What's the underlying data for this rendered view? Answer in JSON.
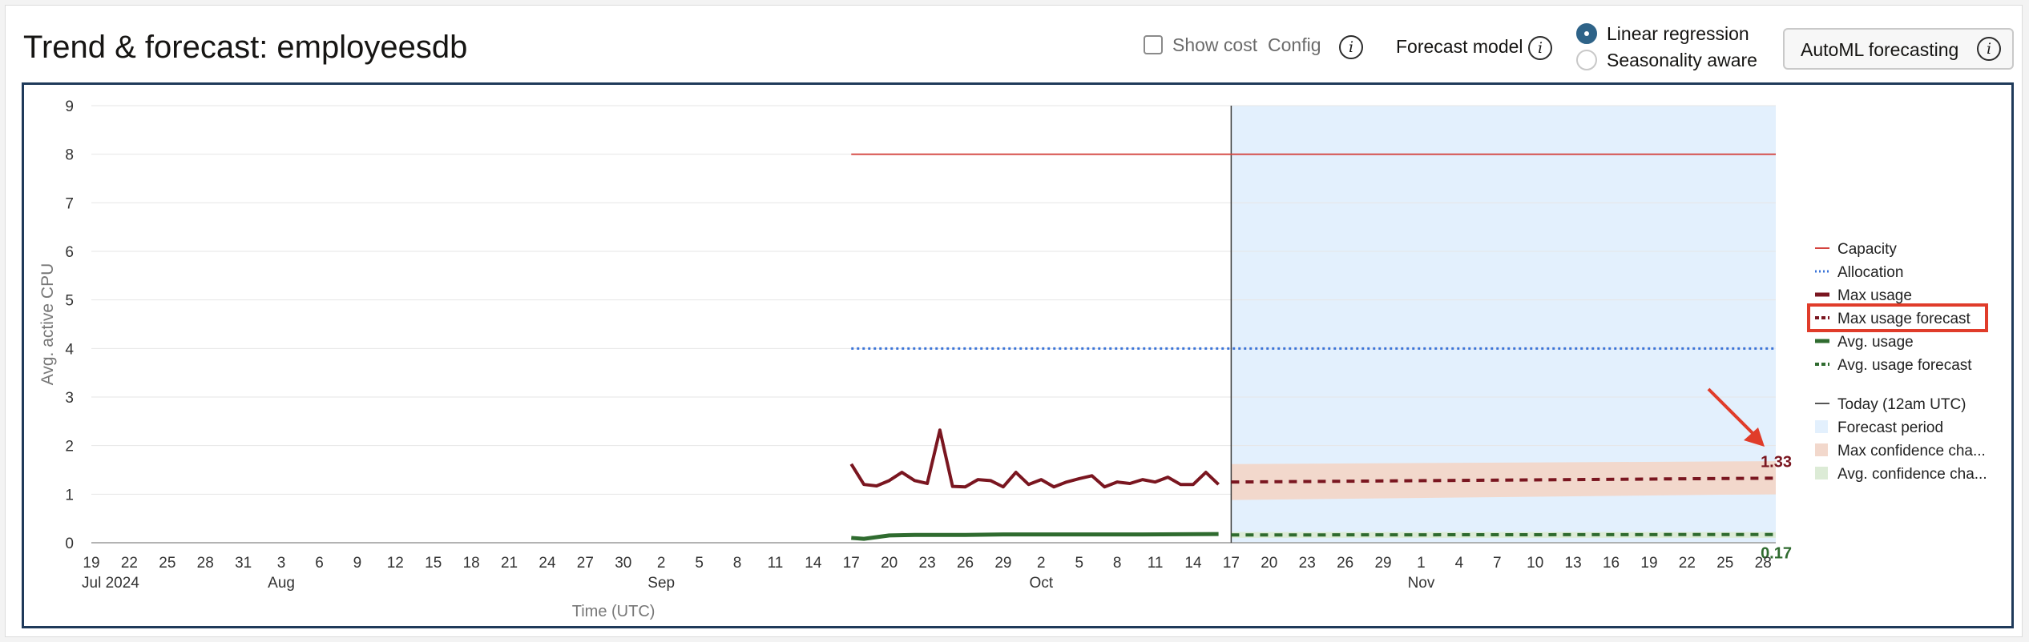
{
  "header": {
    "title": "Trend & forecast: employeesdb",
    "show_cost_label": "Show cost",
    "config_label": "Config",
    "forecast_model_label": "Forecast model",
    "model_options": [
      {
        "label": "Linear regression",
        "selected": true
      },
      {
        "label": "Seasonality aware",
        "selected": false
      }
    ],
    "automl_button_label": "AutoML forecasting",
    "info_icon_glyph": "i"
  },
  "colors": {
    "capacity": "#d4443f",
    "allocation": "#3b74d8",
    "max_usage": "#7a1620",
    "avg_usage": "#2f6b2f",
    "today_line": "#555555",
    "forecast_period": "#e3f0fd",
    "max_confidence": "#f2d8cc",
    "avg_confidence": "#dcebd6",
    "highlight": "#e03c2a",
    "frame": "#1f3a5a"
  },
  "chart_data": {
    "type": "line",
    "ylabel": "Avg. active CPU",
    "xlabel": "Time (UTC)",
    "ylim": [
      0,
      9
    ],
    "yticks": [
      "0",
      "1",
      "2",
      "3",
      "4",
      "5",
      "6",
      "7",
      "8",
      "9"
    ],
    "grid": true,
    "legend_position": "right",
    "xaxis": {
      "start": "2024-07-19",
      "end": "2024-11-29",
      "tick_dates": [
        "2024-07-19",
        "2024-07-22",
        "2024-07-25",
        "2024-07-28",
        "2024-07-31",
        "2024-08-03",
        "2024-08-06",
        "2024-08-09",
        "2024-08-12",
        "2024-08-15",
        "2024-08-18",
        "2024-08-21",
        "2024-08-24",
        "2024-08-27",
        "2024-08-30",
        "2024-09-02",
        "2024-09-05",
        "2024-09-08",
        "2024-09-11",
        "2024-09-14",
        "2024-09-17",
        "2024-09-20",
        "2024-09-23",
        "2024-09-26",
        "2024-09-29",
        "2024-10-02",
        "2024-10-05",
        "2024-10-08",
        "2024-10-11",
        "2024-10-14",
        "2024-10-17",
        "2024-10-20",
        "2024-10-23",
        "2024-10-26",
        "2024-10-29",
        "2024-11-01",
        "2024-11-04",
        "2024-11-07",
        "2024-11-10",
        "2024-11-13",
        "2024-11-16",
        "2024-11-19",
        "2024-11-22",
        "2024-11-25",
        "2024-11-28"
      ],
      "tick_labels": [
        "19",
        "22",
        "25",
        "28",
        "31",
        "3",
        "6",
        "9",
        "12",
        "15",
        "18",
        "21",
        "24",
        "27",
        "30",
        "2",
        "5",
        "8",
        "11",
        "14",
        "17",
        "20",
        "23",
        "26",
        "29",
        "2",
        "5",
        "8",
        "11",
        "14",
        "17",
        "20",
        "23",
        "26",
        "29",
        "1",
        "4",
        "7",
        "10",
        "13",
        "16",
        "19",
        "22",
        "25",
        "28"
      ],
      "period_dates": [
        "2024-07-19",
        "2024-08-03",
        "2024-09-02",
        "2024-10-02",
        "2024-11-01"
      ],
      "period_labels": [
        "Jul 2024",
        "Aug",
        "Sep",
        "Oct",
        "Nov"
      ]
    },
    "today": "2024-10-17",
    "forecast_period": [
      "2024-10-17",
      "2024-11-29"
    ],
    "series": [
      {
        "name": "Capacity",
        "style": "solid",
        "x": [
          "2024-09-17",
          "2024-11-29"
        ],
        "y": [
          8,
          8
        ]
      },
      {
        "name": "Allocation",
        "style": "dotted",
        "x": [
          "2024-09-17",
          "2024-11-29"
        ],
        "y": [
          4,
          4
        ]
      },
      {
        "name": "Max usage",
        "style": "solid",
        "x": [
          "2024-09-17",
          "2024-09-18",
          "2024-09-19",
          "2024-09-20",
          "2024-09-21",
          "2024-09-22",
          "2024-09-23",
          "2024-09-24",
          "2024-09-25",
          "2024-09-26",
          "2024-09-27",
          "2024-09-28",
          "2024-09-29",
          "2024-09-30",
          "2024-10-01",
          "2024-10-02",
          "2024-10-03",
          "2024-10-04",
          "2024-10-05",
          "2024-10-06",
          "2024-10-07",
          "2024-10-08",
          "2024-10-09",
          "2024-10-10",
          "2024-10-11",
          "2024-10-12",
          "2024-10-13",
          "2024-10-14",
          "2024-10-15",
          "2024-10-16"
        ],
        "y": [
          1.62,
          1.2,
          1.17,
          1.28,
          1.45,
          1.28,
          1.22,
          2.32,
          1.16,
          1.15,
          1.3,
          1.28,
          1.15,
          1.45,
          1.2,
          1.3,
          1.15,
          1.25,
          1.32,
          1.38,
          1.15,
          1.25,
          1.22,
          1.3,
          1.25,
          1.35,
          1.2,
          1.2,
          1.45,
          1.2
        ]
      },
      {
        "name": "Max usage forecast",
        "style": "dashed",
        "x": [
          "2024-10-17",
          "2024-11-29"
        ],
        "y": [
          1.25,
          1.33
        ]
      },
      {
        "name": "Avg. usage",
        "style": "solid",
        "x": [
          "2024-09-17",
          "2024-09-18",
          "2024-09-20",
          "2024-09-22",
          "2024-09-26",
          "2024-09-29",
          "2024-10-04",
          "2024-10-10",
          "2024-10-16"
        ],
        "y": [
          0.1,
          0.08,
          0.15,
          0.16,
          0.16,
          0.17,
          0.17,
          0.17,
          0.18
        ]
      },
      {
        "name": "Avg. usage forecast",
        "style": "dashed",
        "x": [
          "2024-10-17",
          "2024-11-29"
        ],
        "y": [
          0.16,
          0.17
        ]
      }
    ],
    "max_confidence_band": {
      "x": [
        "2024-10-17",
        "2024-11-29"
      ],
      "lower": [
        0.88,
        1.0
      ],
      "upper": [
        1.62,
        1.68
      ]
    },
    "avg_confidence_band": {
      "x": [
        "2024-10-17",
        "2024-11-29"
      ],
      "lower": [
        0.1,
        0.1
      ],
      "upper": [
        0.22,
        0.22
      ]
    },
    "end_labels": [
      {
        "text": "1.33",
        "series": "Max usage forecast",
        "y": 1.33
      },
      {
        "text": "0.17",
        "series": "Avg. usage forecast",
        "y": 0.17
      }
    ],
    "legend": [
      {
        "label": "Capacity",
        "swatch": "line",
        "color_key": "capacity"
      },
      {
        "label": "Allocation",
        "swatch": "dotted",
        "color_key": "allocation"
      },
      {
        "label": "Max usage",
        "swatch": "thick",
        "color_key": "max_usage"
      },
      {
        "label": "Max usage forecast",
        "swatch": "dashed",
        "color_key": "max_usage",
        "highlighted": true
      },
      {
        "label": "Avg. usage",
        "swatch": "thick",
        "color_key": "avg_usage"
      },
      {
        "label": "Avg. usage forecast",
        "swatch": "dashed",
        "color_key": "avg_usage"
      },
      {
        "label": "Today (12am UTC)",
        "swatch": "line",
        "color_key": "today_line",
        "gap_before": true
      },
      {
        "label": "Forecast period",
        "swatch": "box",
        "color_key": "forecast_period"
      },
      {
        "label": "Max confidence cha...",
        "swatch": "box",
        "color_key": "max_confidence"
      },
      {
        "label": "Avg. confidence cha...",
        "swatch": "box",
        "color_key": "avg_confidence"
      }
    ]
  }
}
